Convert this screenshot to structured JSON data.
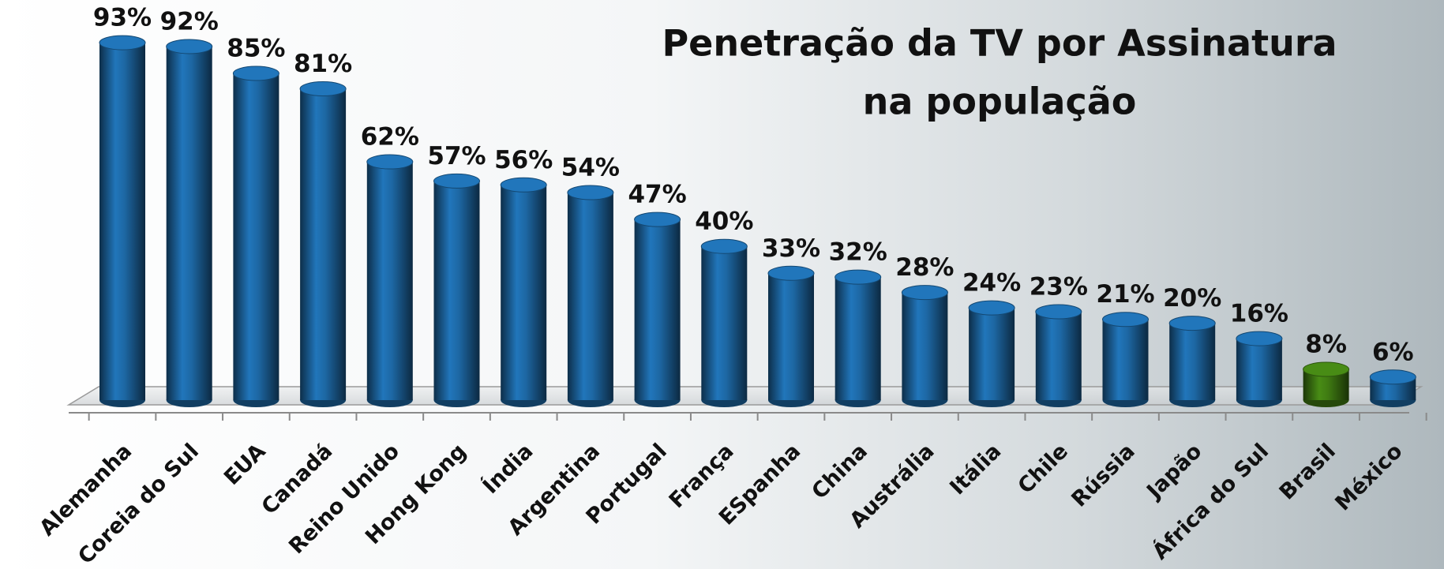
{
  "chart_data": {
    "type": "bar",
    "title": [
      "Penetração da TV por Assinatura",
      "na população"
    ],
    "categories": [
      "Alemanha",
      "Coreia do Sul",
      "EUA",
      "Canadá",
      "Reino Unido",
      "Hong Kong",
      "Índia",
      "Argentina",
      "Portugal",
      "França",
      "ESpanha",
      "China",
      "Austrália",
      "Itália",
      "Chile",
      "Rússia",
      "Japão",
      "África do Sul",
      "Brasil",
      "México"
    ],
    "values": [
      93,
      92,
      85,
      81,
      62,
      57,
      56,
      54,
      47,
      40,
      33,
      32,
      28,
      24,
      23,
      21,
      20,
      16,
      8,
      6
    ],
    "value_labels": [
      "93%",
      "92%",
      "85%",
      "81%",
      "62%",
      "57%",
      "56%",
      "54%",
      "47%",
      "40%",
      "33%",
      "32%",
      "28%",
      "24%",
      "23%",
      "21%",
      "20%",
      "16%",
      "8%",
      "6%"
    ],
    "colors": [
      "#1d67a3",
      "#1d67a3",
      "#1d67a3",
      "#1d67a3",
      "#1d67a3",
      "#1d67a3",
      "#1d67a3",
      "#1d67a3",
      "#1d67a3",
      "#1d67a3",
      "#1d67a3",
      "#1d67a3",
      "#1d67a3",
      "#1d67a3",
      "#1d67a3",
      "#1d67a3",
      "#1d67a3",
      "#1d67a3",
      "#3f7a12",
      "#1d67a3"
    ],
    "ylim": [
      0,
      100
    ]
  }
}
